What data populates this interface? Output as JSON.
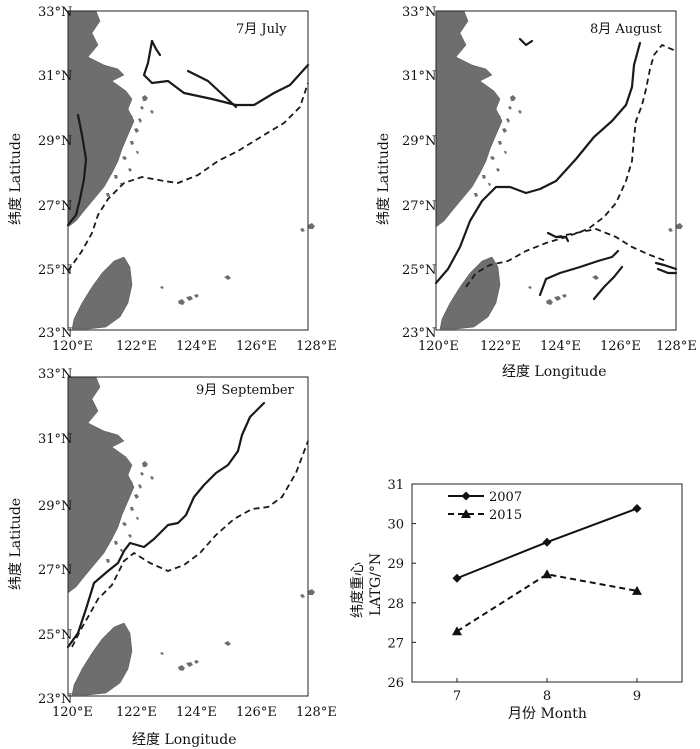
{
  "maps": [
    {
      "id": "july",
      "title": "7月 July",
      "x_ticks": [
        "120°E",
        "122°E",
        "124°E",
        "126°E",
        "128°E"
      ],
      "y_ticks": [
        "33°N",
        "31°N",
        "29°N",
        "27°N",
        "25°N",
        "23°N"
      ],
      "ylabel": "纬度 Latitude",
      "xlabel": ""
    },
    {
      "id": "august",
      "title": "8月 August",
      "x_ticks": [
        "120°E",
        "122°E",
        "124°E",
        "126°E",
        "128°E"
      ],
      "y_ticks": [
        "33°N",
        "31°N",
        "29°N",
        "27°N",
        "25°N",
        "23°N"
      ],
      "ylabel": "纬度 Latitude",
      "xlabel": "经度 Longitude"
    },
    {
      "id": "september",
      "title": "9月 September",
      "x_ticks": [
        "120°E",
        "122°E",
        "124°E",
        "126°E",
        "128°E"
      ],
      "y_ticks": [
        "33°N",
        "31°N",
        "29°N",
        "27°N",
        "25°N",
        "23°N"
      ],
      "ylabel": "纬度 Latitude",
      "xlabel": "经度 Longitude"
    }
  ],
  "chart_data": {
    "type": "line",
    "categories": [
      "7",
      "8",
      "9"
    ],
    "series": [
      {
        "name": "2007",
        "values": [
          28.62,
          29.53,
          30.38
        ],
        "marker": "diamond",
        "style": "solid"
      },
      {
        "name": "2015",
        "values": [
          27.28,
          28.72,
          28.3
        ],
        "marker": "triangle",
        "style": "dashed"
      }
    ],
    "xlabel": "月份 Month",
    "ylabel_line1": "纬度重心",
    "ylabel_line2": "LATG/°N",
    "ylim": [
      26,
      31
    ],
    "yticks": [
      "26",
      "27",
      "28",
      "29",
      "30",
      "31"
    ],
    "legend_position": "top-left"
  }
}
